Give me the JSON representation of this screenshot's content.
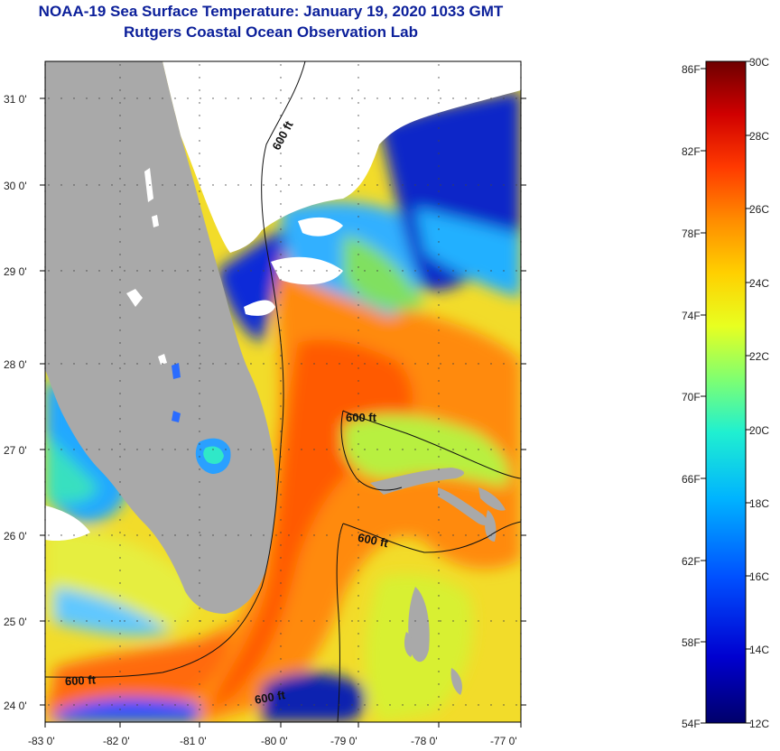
{
  "header": {
    "title": "NOAA-19 Sea Surface Temperature:  January 19, 2020 1033 GMT",
    "subtitle": "Rutgers Coastal Ocean Observation Lab"
  },
  "map": {
    "lat_ticks": [
      "31 0'",
      "30 0'",
      "29 0'",
      "28 0'",
      "27 0'",
      "26 0'",
      "25 0'",
      "24 0'"
    ],
    "lon_ticks": [
      "-83 0'",
      "-82 0'",
      "-81 0'",
      "-80 0'",
      "-79 0'",
      "-78 0'",
      "-77 0'"
    ],
    "contour_labels": [
      "600 ft",
      "600 ft",
      "600 ft",
      "600 ft",
      "600 ft"
    ],
    "land_color": "#a9a9a9"
  },
  "colorbar": {
    "fahrenheit": [
      "86F",
      "82F",
      "78F",
      "74F",
      "70F",
      "66F",
      "62F",
      "58F",
      "54F"
    ],
    "celsius": [
      "30C",
      "28C",
      "26C",
      "24C",
      "22C",
      "20C",
      "18C",
      "16C",
      "14C",
      "12C"
    ],
    "colors": [
      "#7a0000",
      "#c80000",
      "#ff2a00",
      "#ff7a00",
      "#ffc000",
      "#e8ff20",
      "#80ff70",
      "#20f0d0",
      "#00a8ff",
      "#0040ff",
      "#0000b0",
      "#000070"
    ]
  }
}
